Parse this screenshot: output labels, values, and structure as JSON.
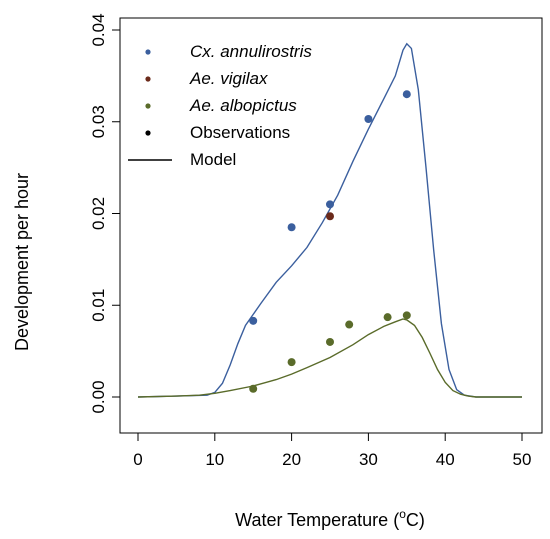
{
  "chart_data": {
    "type": "line",
    "title": "",
    "xlabel_main": "Water Temperature (",
    "xlabel_sup": "o",
    "xlabel_tail": "C)",
    "ylabel": "Development per hour",
    "xlim": [
      0,
      50
    ],
    "ylim": [
      0,
      0.04
    ],
    "x_ticks": [
      0,
      10,
      20,
      30,
      40,
      50
    ],
    "y_ticks": [
      0.0,
      0.01,
      0.02,
      0.03,
      0.04
    ],
    "x_tick_labels": [
      "0",
      "10",
      "20",
      "30",
      "40",
      "50"
    ],
    "y_tick_labels": [
      "0.00",
      "0.01",
      "0.02",
      "0.03",
      "0.04"
    ],
    "grid": false,
    "legend_position": "top-left",
    "legend": [
      {
        "label": "Cx. annulirostris",
        "kind": "point",
        "color": "#3b5f9e",
        "italic": true
      },
      {
        "label": "Ae. vigilax",
        "kind": "point",
        "color": "#6b2a1a",
        "italic": true
      },
      {
        "label": "Ae. albopictus",
        "kind": "point",
        "color": "#5a6b2a",
        "italic": true
      },
      {
        "label": "Observations",
        "kind": "point",
        "color": "#000000",
        "italic": false
      },
      {
        "label": "Model",
        "kind": "line",
        "color": "#000000",
        "italic": false
      }
    ],
    "series": [
      {
        "name": "Cx. annulirostris",
        "color": "#3b5f9e",
        "points": [
          [
            15,
            0.0083
          ],
          [
            20,
            0.0185
          ],
          [
            25,
            0.021
          ],
          [
            30,
            0.0303
          ],
          [
            35,
            0.033
          ]
        ],
        "model": [
          [
            0,
            0.0
          ],
          [
            5,
            0.0001
          ],
          [
            9,
            0.0002
          ],
          [
            10,
            0.0005
          ],
          [
            11,
            0.0015
          ],
          [
            12,
            0.0035
          ],
          [
            13,
            0.0058
          ],
          [
            14,
            0.0078
          ],
          [
            15,
            0.009
          ],
          [
            16,
            0.0102
          ],
          [
            18,
            0.0125
          ],
          [
            20,
            0.0143
          ],
          [
            22,
            0.0163
          ],
          [
            24,
            0.019
          ],
          [
            26,
            0.022
          ],
          [
            28,
            0.0257
          ],
          [
            30,
            0.0292
          ],
          [
            32,
            0.0325
          ],
          [
            33.5,
            0.035
          ],
          [
            34.5,
            0.0378
          ],
          [
            35,
            0.0385
          ],
          [
            35.6,
            0.038
          ],
          [
            36.5,
            0.0335
          ],
          [
            37.5,
            0.025
          ],
          [
            38.5,
            0.016
          ],
          [
            39.5,
            0.008
          ],
          [
            40.5,
            0.003
          ],
          [
            41.5,
            0.0008
          ],
          [
            42.5,
            0.0002
          ],
          [
            44,
            0.0
          ],
          [
            50,
            0.0
          ]
        ]
      },
      {
        "name": "Ae. vigilax",
        "color": "#6b2a1a",
        "points": [
          [
            25,
            0.0197
          ]
        ],
        "model": []
      },
      {
        "name": "Ae. albopictus",
        "color": "#5a6b2a",
        "points": [
          [
            15,
            0.0009
          ],
          [
            20,
            0.0038
          ],
          [
            25,
            0.006
          ],
          [
            27.5,
            0.0079
          ],
          [
            32.5,
            0.0087
          ],
          [
            35,
            0.0089
          ]
        ],
        "model": [
          [
            0,
            0.0
          ],
          [
            5,
            0.0001
          ],
          [
            8,
            0.0002
          ],
          [
            10,
            0.0004
          ],
          [
            12,
            0.0007
          ],
          [
            15,
            0.0012
          ],
          [
            18,
            0.0019
          ],
          [
            20,
            0.0025
          ],
          [
            22,
            0.0032
          ],
          [
            25,
            0.0043
          ],
          [
            28,
            0.0057
          ],
          [
            30,
            0.0068
          ],
          [
            32,
            0.0077
          ],
          [
            33.5,
            0.0082
          ],
          [
            34.5,
            0.0085
          ],
          [
            35,
            0.0084
          ],
          [
            36,
            0.0078
          ],
          [
            37,
            0.0065
          ],
          [
            38,
            0.0048
          ],
          [
            39,
            0.003
          ],
          [
            40,
            0.0016
          ],
          [
            41,
            0.0007
          ],
          [
            42,
            0.0003
          ],
          [
            43,
            0.0001
          ],
          [
            44,
            0.0
          ],
          [
            50,
            0.0
          ]
        ]
      }
    ]
  }
}
